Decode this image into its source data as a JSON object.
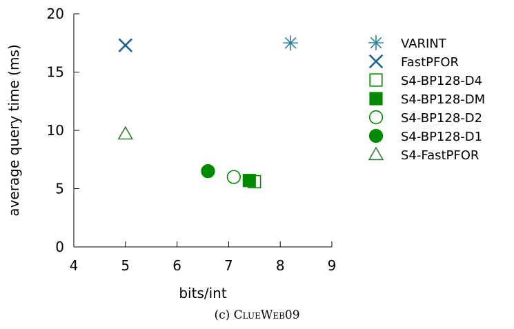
{
  "caption": {
    "prefix": "(c) ",
    "name": "ClueWeb09"
  },
  "chart_data": {
    "type": "scatter",
    "title": "",
    "xlabel": "bits/int",
    "ylabel": "average query time (ms)",
    "xlim": [
      4,
      9
    ],
    "ylim": [
      0,
      20
    ],
    "xticks": [
      4,
      5,
      6,
      7,
      8,
      9
    ],
    "yticks": [
      0,
      5,
      10,
      15,
      20
    ],
    "grid": false,
    "legend_position": "right",
    "series": [
      {
        "name": "VARINT",
        "marker": "asterisk",
        "color": "#2a7fa3",
        "x": [
          8.2
        ],
        "y": [
          17.5
        ]
      },
      {
        "name": "FastPFOR",
        "marker": "cross",
        "color": "#1f6391",
        "x": [
          5.0
        ],
        "y": [
          17.3
        ]
      },
      {
        "name": "S4-BP128-D4",
        "marker": "square-open",
        "color": "#008a00",
        "x": [
          7.5
        ],
        "y": [
          5.6
        ]
      },
      {
        "name": "S4-BP128-DM",
        "marker": "square-filled",
        "color": "#008a00",
        "x": [
          7.4
        ],
        "y": [
          5.7
        ]
      },
      {
        "name": "S4-BP128-D2",
        "marker": "circle-open",
        "color": "#008a00",
        "x": [
          7.1
        ],
        "y": [
          6.0
        ]
      },
      {
        "name": "S4-BP128-D1",
        "marker": "circle-filled",
        "color": "#008a00",
        "x": [
          6.6
        ],
        "y": [
          6.5
        ]
      },
      {
        "name": "S4-FastPFOR",
        "marker": "triangle-open",
        "color": "#2e7d32",
        "x": [
          5.0
        ],
        "y": [
          9.7
        ]
      }
    ]
  }
}
